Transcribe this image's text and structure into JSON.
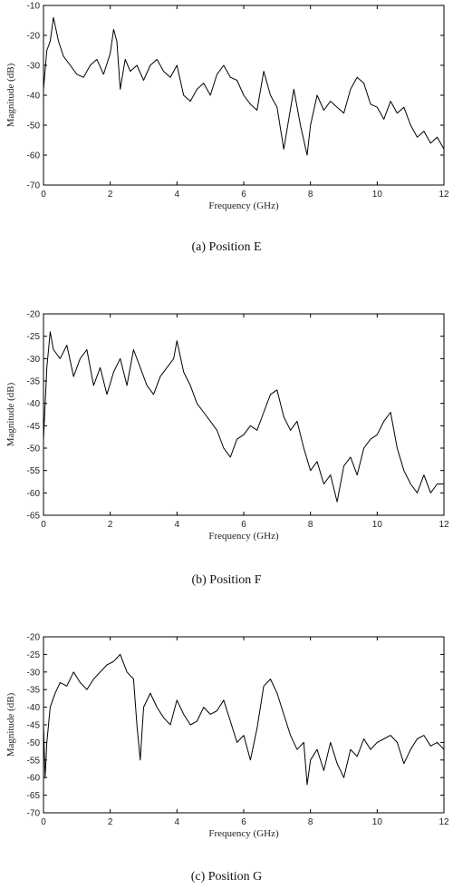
{
  "chart_data": [
    {
      "type": "line",
      "caption": "(a) Position E",
      "xlabel": "Frequency (GHz)",
      "ylabel": "Magnitude (dB)",
      "xlim": [
        0,
        12
      ],
      "ylim": [
        -70,
        -10
      ],
      "xticks": [
        0,
        2,
        4,
        6,
        8,
        10,
        12
      ],
      "yticks": [
        -10,
        -20,
        -30,
        -40,
        -50,
        -60,
        -70
      ],
      "series": [
        {
          "x": [
            0,
            0.1,
            0.2,
            0.3,
            0.45,
            0.6,
            0.8,
            1.0,
            1.2,
            1.4,
            1.6,
            1.8,
            2.0,
            2.1,
            2.2,
            2.3,
            2.45,
            2.6,
            2.8,
            3.0,
            3.2,
            3.4,
            3.6,
            3.8,
            4.0,
            4.2,
            4.4,
            4.6,
            4.8,
            5.0,
            5.2,
            5.4,
            5.6,
            5.8,
            6.0,
            6.2,
            6.4,
            6.6,
            6.8,
            7.0,
            7.2,
            7.35,
            7.5,
            7.7,
            7.9,
            8.0,
            8.2,
            8.4,
            8.6,
            8.8,
            9.0,
            9.2,
            9.4,
            9.6,
            9.8,
            10.0,
            10.2,
            10.4,
            10.6,
            10.8,
            11.0,
            11.2,
            11.4,
            11.6,
            11.8,
            12.0
          ],
          "y": [
            -38,
            -25,
            -22,
            -14,
            -22,
            -27,
            -30,
            -33,
            -34,
            -30,
            -28,
            -33,
            -26,
            -18,
            -22,
            -38,
            -28,
            -32,
            -30,
            -35,
            -30,
            -28,
            -32,
            -34,
            -30,
            -40,
            -42,
            -38,
            -36,
            -40,
            -33,
            -30,
            -34,
            -35,
            -40,
            -43,
            -45,
            -32,
            -40,
            -44,
            -58,
            -48,
            -38,
            -50,
            -60,
            -50,
            -40,
            -45,
            -42,
            -44,
            -46,
            -38,
            -34,
            -36,
            -43,
            -44,
            -48,
            -42,
            -46,
            -44,
            -50,
            -54,
            -52,
            -56,
            -54,
            -58
          ]
        }
      ]
    },
    {
      "type": "line",
      "caption": "(b) Position F",
      "xlabel": "Frequency (GHz)",
      "ylabel": "Magnitude (dB)",
      "xlim": [
        0,
        12
      ],
      "ylim": [
        -65,
        -20
      ],
      "xticks": [
        0,
        2,
        4,
        6,
        8,
        10,
        12
      ],
      "yticks": [
        -20,
        -25,
        -30,
        -35,
        -40,
        -45,
        -50,
        -55,
        -60,
        -65
      ],
      "series": [
        {
          "x": [
            0,
            0.1,
            0.2,
            0.3,
            0.5,
            0.7,
            0.9,
            1.1,
            1.3,
            1.5,
            1.7,
            1.9,
            2.1,
            2.3,
            2.5,
            2.7,
            2.9,
            3.1,
            3.3,
            3.5,
            3.7,
            3.9,
            4.0,
            4.2,
            4.4,
            4.6,
            4.8,
            5.0,
            5.2,
            5.4,
            5.6,
            5.8,
            6.0,
            6.2,
            6.4,
            6.6,
            6.8,
            7.0,
            7.2,
            7.4,
            7.6,
            7.8,
            8.0,
            8.2,
            8.4,
            8.6,
            8.8,
            9.0,
            9.2,
            9.4,
            9.6,
            9.8,
            10.0,
            10.2,
            10.4,
            10.6,
            10.8,
            11.0,
            11.2,
            11.4,
            11.6,
            11.8,
            12.0
          ],
          "y": [
            -48,
            -32,
            -24,
            -28,
            -30,
            -27,
            -34,
            -30,
            -28,
            -36,
            -32,
            -38,
            -33,
            -30,
            -36,
            -28,
            -32,
            -36,
            -38,
            -34,
            -32,
            -30,
            -26,
            -33,
            -36,
            -40,
            -42,
            -44,
            -46,
            -50,
            -52,
            -48,
            -47,
            -45,
            -46,
            -42,
            -38,
            -37,
            -43,
            -46,
            -44,
            -50,
            -55,
            -53,
            -58,
            -56,
            -62,
            -54,
            -52,
            -56,
            -50,
            -48,
            -47,
            -44,
            -42,
            -50,
            -55,
            -58,
            -60,
            -56,
            -60,
            -58,
            -58
          ]
        }
      ]
    },
    {
      "type": "line",
      "caption": "(c) Position G",
      "xlabel": "Frequency (GHz)",
      "ylabel": "Magnitude (dB)",
      "xlim": [
        0,
        12
      ],
      "ylim": [
        -70,
        -20
      ],
      "xticks": [
        0,
        2,
        4,
        6,
        8,
        10,
        12
      ],
      "yticks": [
        -20,
        -25,
        -30,
        -35,
        -40,
        -45,
        -50,
        -55,
        -60,
        -65,
        -70
      ],
      "series": [
        {
          "x": [
            0,
            0.05,
            0.1,
            0.2,
            0.35,
            0.5,
            0.7,
            0.9,
            1.1,
            1.3,
            1.5,
            1.7,
            1.9,
            2.1,
            2.3,
            2.5,
            2.7,
            2.8,
            2.9,
            3.0,
            3.2,
            3.4,
            3.6,
            3.8,
            4.0,
            4.2,
            4.4,
            4.6,
            4.8,
            5.0,
            5.2,
            5.4,
            5.6,
            5.8,
            6.0,
            6.2,
            6.4,
            6.6,
            6.8,
            7.0,
            7.2,
            7.4,
            7.6,
            7.8,
            7.9,
            8.0,
            8.2,
            8.4,
            8.6,
            8.8,
            9.0,
            9.2,
            9.4,
            9.6,
            9.8,
            10.0,
            10.2,
            10.4,
            10.6,
            10.8,
            11.0,
            11.2,
            11.4,
            11.6,
            11.8,
            12.0
          ],
          "y": [
            -45,
            -60,
            -50,
            -40,
            -36,
            -33,
            -34,
            -30,
            -33,
            -35,
            -32,
            -30,
            -28,
            -27,
            -25,
            -30,
            -32,
            -45,
            -55,
            -40,
            -36,
            -40,
            -43,
            -45,
            -38,
            -42,
            -45,
            -44,
            -40,
            -42,
            -41,
            -38,
            -44,
            -50,
            -48,
            -55,
            -46,
            -34,
            -32,
            -36,
            -42,
            -48,
            -52,
            -50,
            -62,
            -55,
            -52,
            -58,
            -50,
            -56,
            -60,
            -52,
            -54,
            -49,
            -52,
            -50,
            -49,
            -48,
            -50,
            -56,
            -52,
            -49,
            -48,
            -51,
            -50,
            -52
          ]
        }
      ]
    }
  ]
}
